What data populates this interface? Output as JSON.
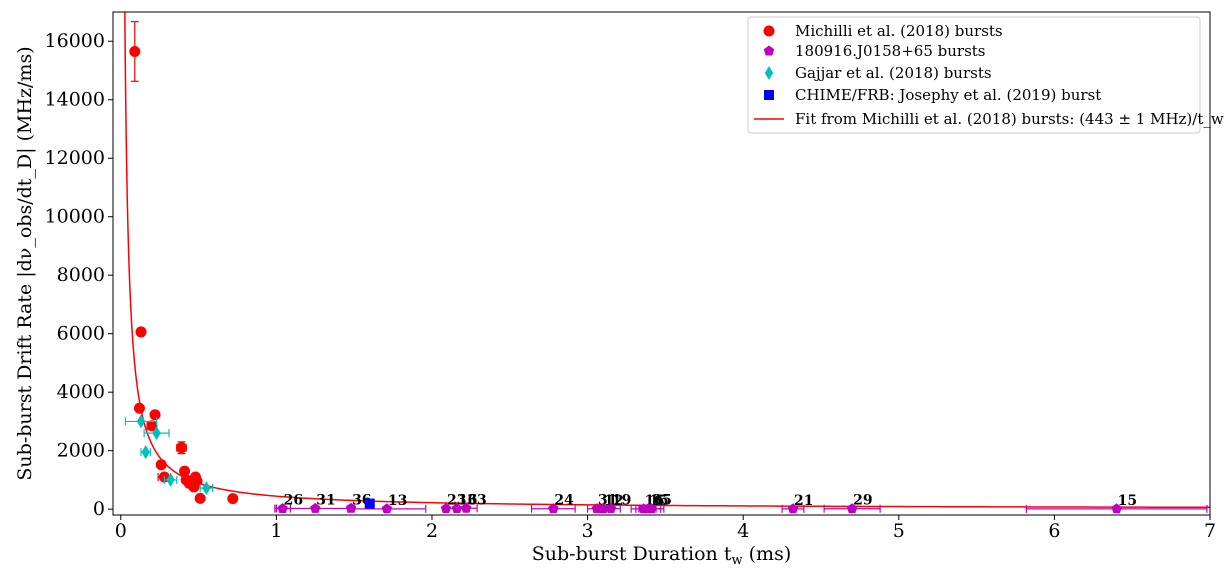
{
  "chart_data": {
    "type": "scatter",
    "xlabel": "Sub-burst Duration t_w (ms)",
    "ylabel": "Sub-burst Drift Rate |dν_obs/dt_D| (MHz/ms)",
    "xlim": [
      -0.05,
      7.0
    ],
    "ylim": [
      -200,
      17000
    ],
    "x_ticks": [
      0,
      1,
      2,
      3,
      4,
      5,
      6,
      7
    ],
    "y_ticks": [
      0,
      2000,
      4000,
      6000,
      8000,
      10000,
      12000,
      14000,
      16000
    ],
    "legend_position": "top-right",
    "fit": {
      "label": "Fit from Michilli et al. (2018) bursts: (443 ± 1 MHz)/t_w",
      "coefficient": 443,
      "color": "#ff0000"
    },
    "series": [
      {
        "name": "Michilli et al. (2018) bursts",
        "marker": "circle",
        "color": "#ff0000",
        "points": [
          {
            "x": 0.09,
            "y": 15650,
            "yerr": 1020
          },
          {
            "x": 0.13,
            "y": 6060
          },
          {
            "x": 0.12,
            "y": 3450
          },
          {
            "x": 0.22,
            "y": 3230
          },
          {
            "x": 0.2,
            "y": 2850,
            "xerr": 0.03
          },
          {
            "x": 0.39,
            "y": 2100,
            "xerr": 0.03,
            "yerr": 200
          },
          {
            "x": 0.26,
            "y": 1520
          },
          {
            "x": 0.28,
            "y": 1100,
            "xerr": 0.04
          },
          {
            "x": 0.41,
            "y": 1300
          },
          {
            "x": 0.42,
            "y": 1000
          },
          {
            "x": 0.44,
            "y": 880
          },
          {
            "x": 0.48,
            "y": 1100
          },
          {
            "x": 0.49,
            "y": 960
          },
          {
            "x": 0.47,
            "y": 760
          },
          {
            "x": 0.51,
            "y": 370
          },
          {
            "x": 0.72,
            "y": 360
          }
        ]
      },
      {
        "name": "180916.J0158+65 bursts",
        "marker": "pentagon",
        "color": "#bf00bf",
        "points": [
          {
            "x": 1.04,
            "y": 20,
            "xerr": 0.05,
            "label": "26"
          },
          {
            "x": 1.25,
            "y": 25,
            "xerr": 0.25,
            "label": "31"
          },
          {
            "x": 1.48,
            "y": 30,
            "label": "36"
          },
          {
            "x": 1.71,
            "y": 10,
            "xerr": 0.25,
            "label": "13"
          },
          {
            "x": 2.09,
            "y": 20,
            "label": "23"
          },
          {
            "x": 2.16,
            "y": 20,
            "xerr": 0.07,
            "label": "16"
          },
          {
            "x": 2.22,
            "y": 30,
            "xerr": 0.07,
            "label": "33"
          },
          {
            "x": 2.78,
            "y": 15,
            "xerr": 0.14,
            "label": "24"
          },
          {
            "x": 3.06,
            "y": 15,
            "xerr": 0.06,
            "label": "31"
          },
          {
            "x": 3.1,
            "y": 10,
            "xerr": 0.06,
            "label": "12"
          },
          {
            "x": 3.15,
            "y": 20,
            "xerr": 0.06,
            "label": "19"
          },
          {
            "x": 3.36,
            "y": 10,
            "xerr": 0.08,
            "label": "16"
          },
          {
            "x": 3.39,
            "y": 10,
            "xerr": 0.08,
            "label": "15"
          },
          {
            "x": 3.41,
            "y": 15,
            "xerr": 0.08,
            "label": "35"
          },
          {
            "x": 4.32,
            "y": 10,
            "xerr": 0.07,
            "label": "21"
          },
          {
            "x": 4.7,
            "y": 15,
            "xerr": 0.18,
            "label": "29"
          },
          {
            "x": 6.4,
            "y": 10,
            "xerr": 0.58,
            "label": "15"
          }
        ]
      },
      {
        "name": "Gajjar et al. (2018) bursts",
        "marker": "diamond",
        "color": "#00bfbf",
        "points": [
          {
            "x": 0.13,
            "y": 3000,
            "xerr": 0.1
          },
          {
            "x": 0.23,
            "y": 2600,
            "xerr": 0.08
          },
          {
            "x": 0.16,
            "y": 1950,
            "xerr": 0.03
          },
          {
            "x": 0.32,
            "y": 1000,
            "xerr": 0.04
          },
          {
            "x": 0.55,
            "y": 720,
            "xerr": 0.04
          }
        ]
      },
      {
        "name": "CHIME/FRB: Josephy et al. (2019) burst",
        "marker": "square",
        "color": "#0000ff",
        "points": [
          {
            "x": 1.6,
            "y": 190
          }
        ]
      }
    ]
  }
}
